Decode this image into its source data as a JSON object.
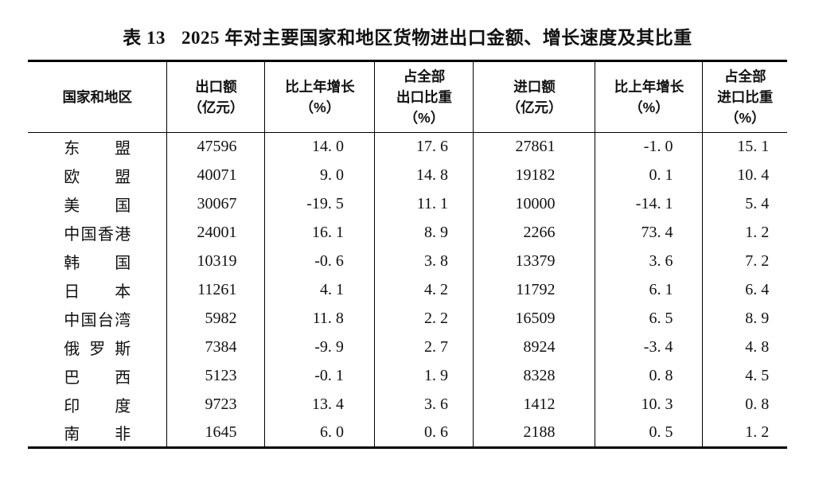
{
  "title": {
    "prefix": "表 13",
    "text": "2025 年对主要国家和地区货物进出口金额、增长速度及其比重"
  },
  "table": {
    "columns": [
      {
        "lines": [
          "国家和地区"
        ]
      },
      {
        "lines": [
          "出口额",
          "（亿元）"
        ]
      },
      {
        "lines": [
          "比上年增长",
          "（%）"
        ]
      },
      {
        "lines": [
          "占全部",
          "出口比重",
          "（%）"
        ]
      },
      {
        "lines": [
          "进口额",
          "（亿元）"
        ]
      },
      {
        "lines": [
          "比上年增长",
          "（%）"
        ]
      },
      {
        "lines": [
          "占全部",
          "进口比重",
          "（%）"
        ]
      }
    ],
    "rows": [
      {
        "region": "东盟",
        "export_value": "47596",
        "export_growth": "14. 0",
        "export_share": "17. 6",
        "import_value": "27861",
        "import_growth": "-1. 0",
        "import_share": "15. 1"
      },
      {
        "region": "欧盟",
        "export_value": "40071",
        "export_growth": "9. 0",
        "export_share": "14. 8",
        "import_value": "19182",
        "import_growth": "0. 1",
        "import_share": "10. 4"
      },
      {
        "region": "美国",
        "export_value": "30067",
        "export_growth": "-19. 5",
        "export_share": "11. 1",
        "import_value": "10000",
        "import_growth": "-14. 1",
        "import_share": "5. 4"
      },
      {
        "region": "中国香港",
        "export_value": "24001",
        "export_growth": "16. 1",
        "export_share": "8. 9",
        "import_value": "2266",
        "import_growth": "73. 4",
        "import_share": "1. 2"
      },
      {
        "region": "韩国",
        "export_value": "10319",
        "export_growth": "-0. 6",
        "export_share": "3. 8",
        "import_value": "13379",
        "import_growth": "3. 6",
        "import_share": "7. 2"
      },
      {
        "region": "日本",
        "export_value": "11261",
        "export_growth": "4. 1",
        "export_share": "4. 2",
        "import_value": "11792",
        "import_growth": "6. 1",
        "import_share": "6. 4"
      },
      {
        "region": "中国台湾",
        "export_value": "5982",
        "export_growth": "11. 8",
        "export_share": "2. 2",
        "import_value": "16509",
        "import_growth": "6. 5",
        "import_share": "8. 9"
      },
      {
        "region": "俄罗斯",
        "export_value": "7384",
        "export_growth": "-9. 9",
        "export_share": "2. 7",
        "import_value": "8924",
        "import_growth": "-3. 4",
        "import_share": "4. 8"
      },
      {
        "region": "巴西",
        "export_value": "5123",
        "export_growth": "-0. 1",
        "export_share": "1. 9",
        "import_value": "8328",
        "import_growth": "0. 8",
        "import_share": "4. 5"
      },
      {
        "region": "印度",
        "export_value": "9723",
        "export_growth": "13. 4",
        "export_share": "3. 6",
        "import_value": "1412",
        "import_growth": "10. 3",
        "import_share": "0. 8"
      },
      {
        "region": "南非",
        "export_value": "1645",
        "export_growth": "6. 0",
        "export_share": "0. 6",
        "import_value": "2188",
        "import_growth": "0. 5",
        "import_share": "1. 2"
      }
    ]
  }
}
